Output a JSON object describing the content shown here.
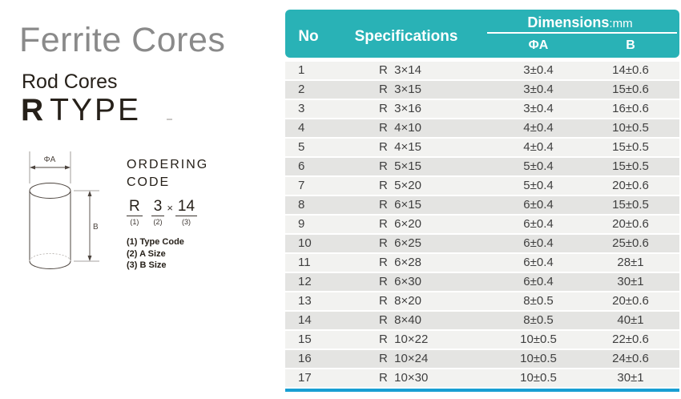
{
  "page": {
    "title": "Ferrite Cores",
    "subtitle": "Rod Cores",
    "type_letter": "R",
    "type_word": "TYPE"
  },
  "diagram": {
    "label_a": "ΦA",
    "label_b": "B"
  },
  "ordering": {
    "title1": "ORDERING",
    "title2": "CODE",
    "times": "×",
    "code": [
      {
        "text": "R",
        "num": "(1)"
      },
      {
        "text": "3",
        "num": "(2)"
      },
      {
        "text": "14",
        "num": "(3)"
      }
    ],
    "legend": [
      "(1) Type Code",
      "(2) A Size",
      "(3) B Size"
    ]
  },
  "table": {
    "header": {
      "no": "No",
      "spec": "Specifications",
      "dims": "Dimensions",
      "dims_unit": ":mm",
      "col_a": "ΦA",
      "col_b": "B"
    },
    "rows": [
      {
        "no": "1",
        "spec": "R  3×14",
        "a": "3±0.4",
        "b": "14±0.6"
      },
      {
        "no": "2",
        "spec": "R  3×15",
        "a": "3±0.4",
        "b": "15±0.6"
      },
      {
        "no": "3",
        "spec": "R  3×16",
        "a": "3±0.4",
        "b": "16±0.6"
      },
      {
        "no": "4",
        "spec": "R  4×10",
        "a": "4±0.4",
        "b": "10±0.5"
      },
      {
        "no": "5",
        "spec": "R  4×15",
        "a": "4±0.4",
        "b": "15±0.5"
      },
      {
        "no": "6",
        "spec": "R  5×15",
        "a": "5±0.4",
        "b": "15±0.5"
      },
      {
        "no": "7",
        "spec": "R  5×20",
        "a": "5±0.4",
        "b": "20±0.6"
      },
      {
        "no": "8",
        "spec": "R  6×15",
        "a": "6±0.4",
        "b": "15±0.5"
      },
      {
        "no": "9",
        "spec": "R  6×20",
        "a": "6±0.4",
        "b": "20±0.6"
      },
      {
        "no": "10",
        "spec": "R  6×25",
        "a": "6±0.4",
        "b": "25±0.6"
      },
      {
        "no": "11",
        "spec": "R  6×28",
        "a": "6±0.4",
        "b": "28±1"
      },
      {
        "no": "12",
        "spec": "R  6×30",
        "a": "6±0.4",
        "b": "30±1"
      },
      {
        "no": "13",
        "spec": "R  8×20",
        "a": "8±0.5",
        "b": "20±0.6"
      },
      {
        "no": "14",
        "spec": "R  8×40",
        "a": "8±0.5",
        "b": "40±1"
      },
      {
        "no": "15",
        "spec": "R  10×22",
        "a": "10±0.5",
        "b": "22±0.6"
      },
      {
        "no": "16",
        "spec": "R  10×24",
        "a": "10±0.5",
        "b": "24±0.6"
      },
      {
        "no": "17",
        "spec": "R  10×30",
        "a": "10±0.5",
        "b": "30±1"
      }
    ]
  },
  "colors": {
    "teal": "#29b2b6",
    "row_odd": "#f2f2f0",
    "row_even": "#e4e4e2",
    "blue_line": "#189fd3",
    "title_gray": "#8a8a8a",
    "ink": "#262019",
    "table_ink": "#3f3f3f"
  }
}
